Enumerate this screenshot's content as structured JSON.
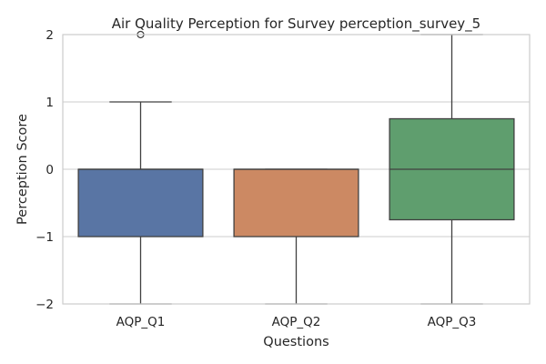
{
  "chart_data": {
    "type": "box",
    "title": "Air Quality Perception for Survey perception_survey_5",
    "xlabel": "Questions",
    "ylabel": "Perception Score",
    "ylim": [
      -2,
      2
    ],
    "yticks": [
      -2,
      -1,
      0,
      1,
      2
    ],
    "ytick_labels": [
      "−2",
      "−1",
      "0",
      "1",
      "2"
    ],
    "grid": true,
    "categories": [
      "AQP_Q1",
      "AQP_Q2",
      "AQP_Q3"
    ],
    "boxes": [
      {
        "name": "AQP_Q1",
        "whisker_low": -2,
        "q1": -1,
        "median": 0,
        "q3": 0,
        "whisker_high": 1,
        "outliers": [
          2
        ],
        "color": "#5975a4"
      },
      {
        "name": "AQP_Q2",
        "whisker_low": -2,
        "q1": -1,
        "median": 0,
        "q3": 0,
        "whisker_high": 0,
        "outliers": [],
        "color": "#cc8963"
      },
      {
        "name": "AQP_Q3",
        "whisker_low": -2,
        "q1": -0.75,
        "median": 0,
        "q3": 0.75,
        "whisker_high": 2,
        "outliers": [],
        "color": "#5f9e6e"
      }
    ]
  }
}
